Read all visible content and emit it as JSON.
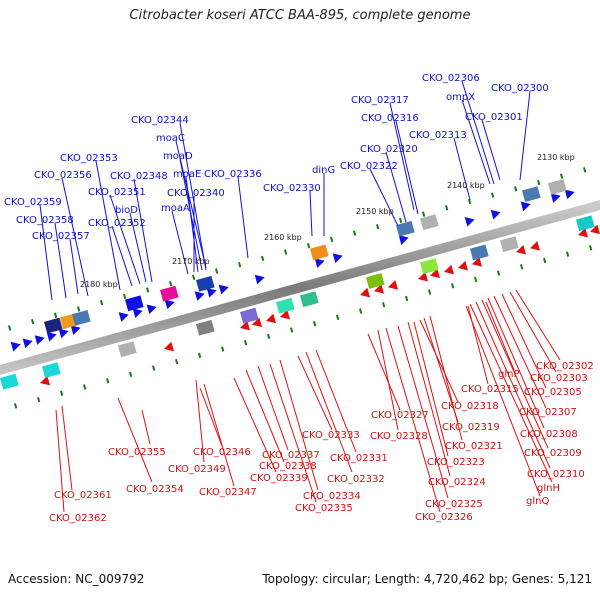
{
  "title": "Citrobacter koseri ATCC BAA-895, complete genome",
  "footer": {
    "accession": "Accession: NC_009792",
    "topology": "Topology: circular; Length: 4,720,462 bp; Genes: 5,121"
  },
  "ticks": [
    "2180 kbp",
    "2170 kbp",
    "2160 kbp",
    "2150 kbp",
    "2140 kbp",
    "2130 kbp"
  ],
  "forward_labels": [
    "CKO_02359",
    "CKO_02358",
    "CKO_02357",
    "CKO_02356",
    "CKO_02353",
    "bioD",
    "CKO_02352",
    "CKO_02351",
    "CKO_02348",
    "moaA",
    "CKO_02344",
    "moaC",
    "moaD",
    "moaE",
    "CKO_02340",
    "CKO_02336",
    "CKO_02330",
    "dinG",
    "CKO_02322",
    "CKO_02320",
    "CKO_02317",
    "CKO_02316",
    "CKO_02313",
    "CKO_02306",
    "ompX",
    "CKO_02301",
    "CKO_02300"
  ],
  "reverse_labels": [
    "CKO_02361",
    "CKO_02362",
    "CKO_02355",
    "CKO_02354",
    "CKO_02346",
    "CKO_02349",
    "CKO_02347",
    "CKO_02337",
    "CKO_02338",
    "CKO_02339",
    "CKO_02333",
    "CKO_02334",
    "CKO_02335",
    "CKO_02331",
    "CKO_02332",
    "CKO_02327",
    "CKO_02328",
    "CKO_02319",
    "CKO_02318",
    "CKO_02321",
    "CKO_02323",
    "CKO_02324",
    "CKO_02325",
    "CKO_02326",
    "CKO_02315",
    "glnP",
    "CKO_02302",
    "CKO_02303",
    "CKO_02305",
    "CKO_02307",
    "CKO_02308",
    "CKO_02309",
    "CKO_02310",
    "glnH",
    "glnQ"
  ],
  "colors": {
    "forward_gene": "#1010e0",
    "reverse_gene": "#e01010",
    "backbone": "#808080"
  }
}
